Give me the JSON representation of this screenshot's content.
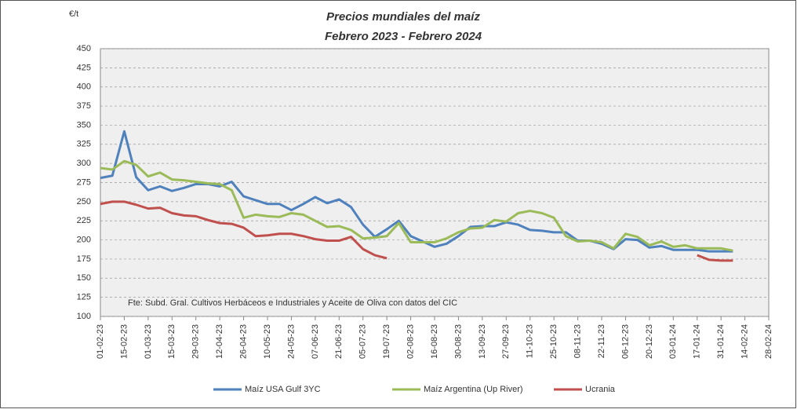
{
  "chart_data": {
    "type": "line",
    "title": "Precios mundiales del maíz",
    "subtitle": "Febrero 2023 - Febrero 2024",
    "y_label": "€/t",
    "annotation": "Fte: Subd. Gral. Cultivos Herbáceos e Industriales y Aceite de Oliva con datos del CIC",
    "categories": [
      "01-02-23",
      null,
      "15-02-23",
      null,
      "01-03-23",
      null,
      "15-03-23",
      null,
      "29-03-23",
      null,
      "12-04-23",
      null,
      "26-04-23",
      null,
      "10-05-23",
      null,
      "24-05-23",
      null,
      "07-06-23",
      null,
      "21-06-23",
      null,
      "05-07-23",
      null,
      "19-07-23",
      null,
      "02-08-23",
      null,
      "16-08-23",
      null,
      "30-08-23",
      null,
      "13-09-23",
      null,
      "27-09-23",
      null,
      "11-10-23",
      null,
      "25-10-23",
      null,
      "08-11-23",
      null,
      "22-11-23",
      null,
      "06-12-23",
      null,
      "20-12-23",
      null,
      "03-01-24",
      null,
      "17-01-24",
      null,
      "31-01-24",
      null,
      "14-02-24",
      null,
      "28-02-24"
    ],
    "series": [
      {
        "name": "Maíz USA Gulf 3YC",
        "color": "#4f81bd",
        "values": [
          281,
          284,
          342,
          282,
          265,
          270,
          264,
          268,
          273,
          273,
          270,
          276,
          257,
          252,
          247,
          247,
          239,
          247,
          256,
          248,
          253,
          243,
          220,
          204,
          214,
          225,
          205,
          198,
          191,
          195,
          205,
          217,
          218,
          218,
          223,
          220,
          213,
          212,
          210,
          210,
          199,
          199,
          195,
          188,
          201,
          200,
          190,
          192,
          187,
          187,
          187,
          185,
          185,
          185,
          null,
          null,
          null
        ]
      },
      {
        "name": "Maíz Argentina (Up River)",
        "color": "#9bbb59",
        "values": [
          294,
          292,
          303,
          298,
          283,
          288,
          279,
          278,
          276,
          274,
          273,
          265,
          229,
          233,
          231,
          230,
          235,
          233,
          225,
          217,
          218,
          213,
          202,
          203,
          205,
          222,
          197,
          197,
          197,
          202,
          210,
          215,
          216,
          226,
          224,
          235,
          238,
          235,
          229,
          205,
          198,
          199,
          197,
          189,
          208,
          204,
          193,
          198,
          191,
          193,
          189,
          189,
          189,
          186,
          null,
          null,
          null
        ]
      },
      {
        "name": "Ucrania",
        "color": "#c0504d",
        "values": [
          247,
          250,
          250,
          246,
          241,
          242,
          235,
          232,
          231,
          226,
          222,
          221,
          216,
          205,
          206,
          208,
          208,
          205,
          201,
          199,
          199,
          204,
          188,
          180,
          176,
          null,
          null,
          null,
          null,
          null,
          null,
          null,
          null,
          null,
          null,
          null,
          null,
          null,
          null,
          null,
          null,
          null,
          null,
          null,
          null,
          null,
          null,
          null,
          null,
          null,
          180,
          174,
          173,
          173,
          null,
          null,
          null
        ]
      }
    ],
    "ylim": [
      100,
      450
    ],
    "yticks": [
      100,
      125,
      150,
      175,
      200,
      225,
      250,
      275,
      300,
      325,
      350,
      375,
      400,
      425,
      450
    ],
    "grid": true
  }
}
